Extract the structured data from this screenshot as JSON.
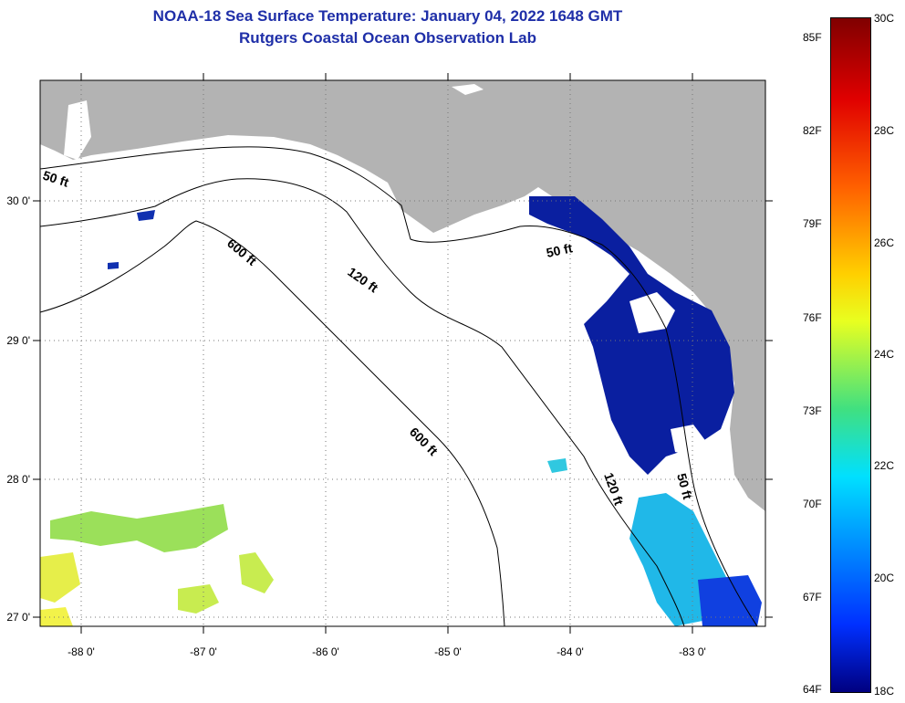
{
  "header": {
    "title": "NOAA-18 Sea Surface Temperature:  January 04, 2022 1648 GMT",
    "subtitle": "Rutgers Coastal Ocean Observation Lab"
  },
  "map": {
    "lon_ticks": [
      "-88 0'",
      "-87 0'",
      "-86 0'",
      "-85 0'",
      "-84 0'",
      "-83 0'"
    ],
    "lat_ticks": [
      "30 0'",
      "29 0'",
      "28 0'",
      "27 0'"
    ],
    "contour_labels": {
      "c50a": "50 ft",
      "c50b": "50 ft",
      "c50c": "50 ft",
      "c120a": "120 ft",
      "c120b": "120 ft",
      "c600a": "600 ft",
      "c600b": "600 ft"
    }
  },
  "colorbar": {
    "fahrenheit": [
      "85F",
      "82F",
      "79F",
      "76F",
      "73F",
      "70F",
      "67F",
      "64F"
    ],
    "celsius": [
      "30C",
      "28C",
      "26C",
      "24C",
      "22C",
      "20C",
      "18C"
    ]
  },
  "colors": {
    "title": "#1f2fa8",
    "land": "#b3b3b3",
    "cold": "#0a1fa0",
    "warm": "#f2f24a"
  }
}
